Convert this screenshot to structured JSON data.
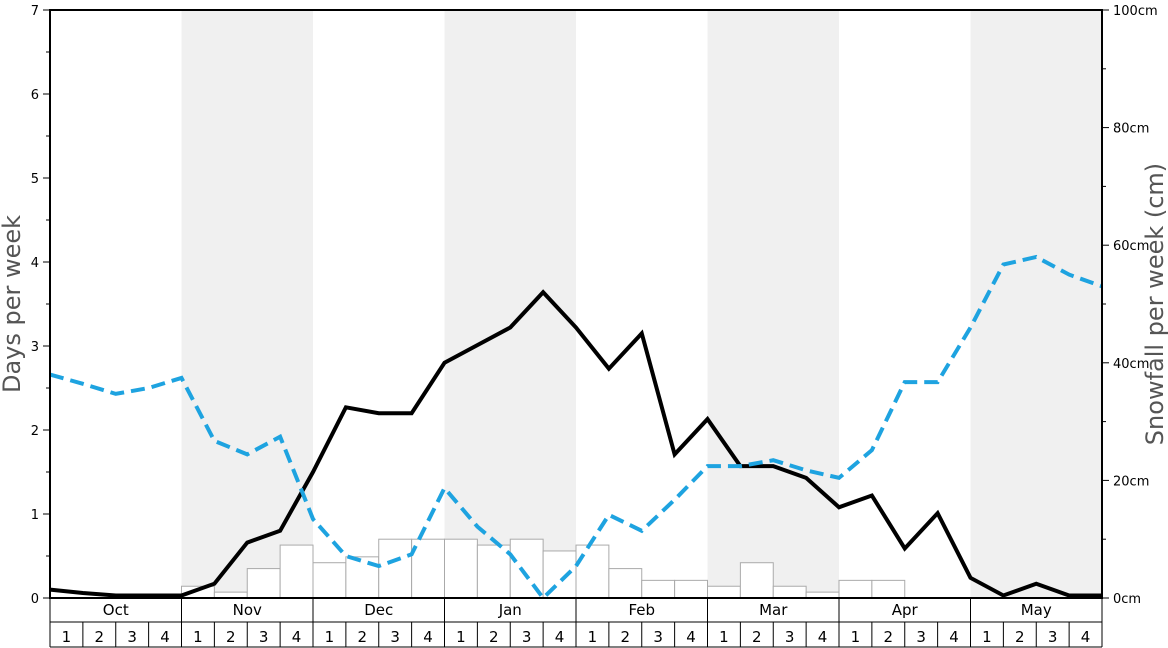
{
  "chart_data": {
    "type": "line",
    "ylabel": "Days per week",
    "y2label": "Snowfall per week (cm)",
    "ylim": [
      0,
      7
    ],
    "y2lim": [
      0,
      100
    ],
    "yticks": [
      "0",
      "1",
      "2",
      "3",
      "4",
      "5",
      "6",
      "7"
    ],
    "y2ticks": [
      "0cm",
      "20cm",
      "40cm",
      "60cm",
      "80cm",
      "100cm"
    ],
    "months": [
      "Oct",
      "Nov",
      "Dec",
      "Jan",
      "Feb",
      "Mar",
      "Apr",
      "May"
    ],
    "weeks": [
      "1",
      "2",
      "3",
      "4"
    ],
    "shaded_months": [
      "Nov",
      "Jan",
      "Mar",
      "May"
    ],
    "series": [
      {
        "style": "bars",
        "axis": "right",
        "color": "#ffffff",
        "stroke": "#aaaaaa",
        "values": [
          0,
          0,
          0,
          0,
          2,
          1,
          5,
          9,
          6,
          7,
          10,
          10,
          10,
          9,
          10,
          8,
          9,
          5,
          3,
          3,
          2,
          6,
          2,
          1,
          3,
          3,
          0,
          0,
          0,
          0,
          0,
          0
        ]
      },
      {
        "style": "solid",
        "axis": "left",
        "color": "#000000",
        "values": [
          0.1,
          0.06,
          0.03,
          0.03,
          0.03,
          0.17,
          0.66,
          0.8,
          1.5,
          2.27,
          2.2,
          2.2,
          2.8,
          3.01,
          3.22,
          3.64,
          3.22,
          2.73,
          3.15,
          1.71,
          2.13,
          1.57,
          1.57,
          1.43,
          1.08,
          1.22,
          0.59,
          1.01,
          0.24,
          0.03,
          0.17,
          0.03,
          0.03
        ]
      },
      {
        "style": "dashed",
        "axis": "left",
        "color": "#1ea3e0",
        "values": [
          2.66,
          2.55,
          2.43,
          2.5,
          2.62,
          1.87,
          1.71,
          1.92,
          0.94,
          0.5,
          0.38,
          0.52,
          1.31,
          0.85,
          0.52,
          0.0,
          0.38,
          0.99,
          0.8,
          1.17,
          1.57,
          1.57,
          1.64,
          1.52,
          1.43,
          1.76,
          2.57,
          2.57,
          3.22,
          3.97,
          4.06,
          3.85,
          3.71
        ]
      }
    ]
  }
}
